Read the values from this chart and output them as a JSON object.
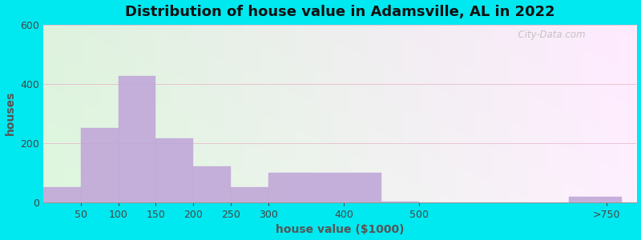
{
  "title": "Distribution of house value in Adamsville, AL in 2022",
  "xlabel": "house value ($1000)",
  "ylabel": "houses",
  "tick_labels": [
    "50",
    "100",
    "150",
    "200",
    "250",
    "300",
    "400",
    "500",
    ">750"
  ],
  "tick_positions": [
    50,
    100,
    150,
    200,
    250,
    300,
    400,
    500,
    750
  ],
  "bin_lefts": [
    0,
    50,
    100,
    150,
    200,
    250,
    300,
    450,
    700
  ],
  "bin_rights": [
    50,
    100,
    150,
    200,
    250,
    300,
    450,
    500,
    770
  ],
  "bar_values": [
    50,
    250,
    425,
    215,
    120,
    50,
    100,
    2,
    18
  ],
  "bar_color": "#c0a8d8",
  "ylim": [
    0,
    600
  ],
  "yticks": [
    0,
    200,
    400,
    600
  ],
  "xlim": [
    0,
    790
  ],
  "title_fontsize": 13,
  "label_fontsize": 10,
  "tick_fontsize": 9,
  "figure_bg": "#00e8f0",
  "watermark": "  City-Data.com"
}
